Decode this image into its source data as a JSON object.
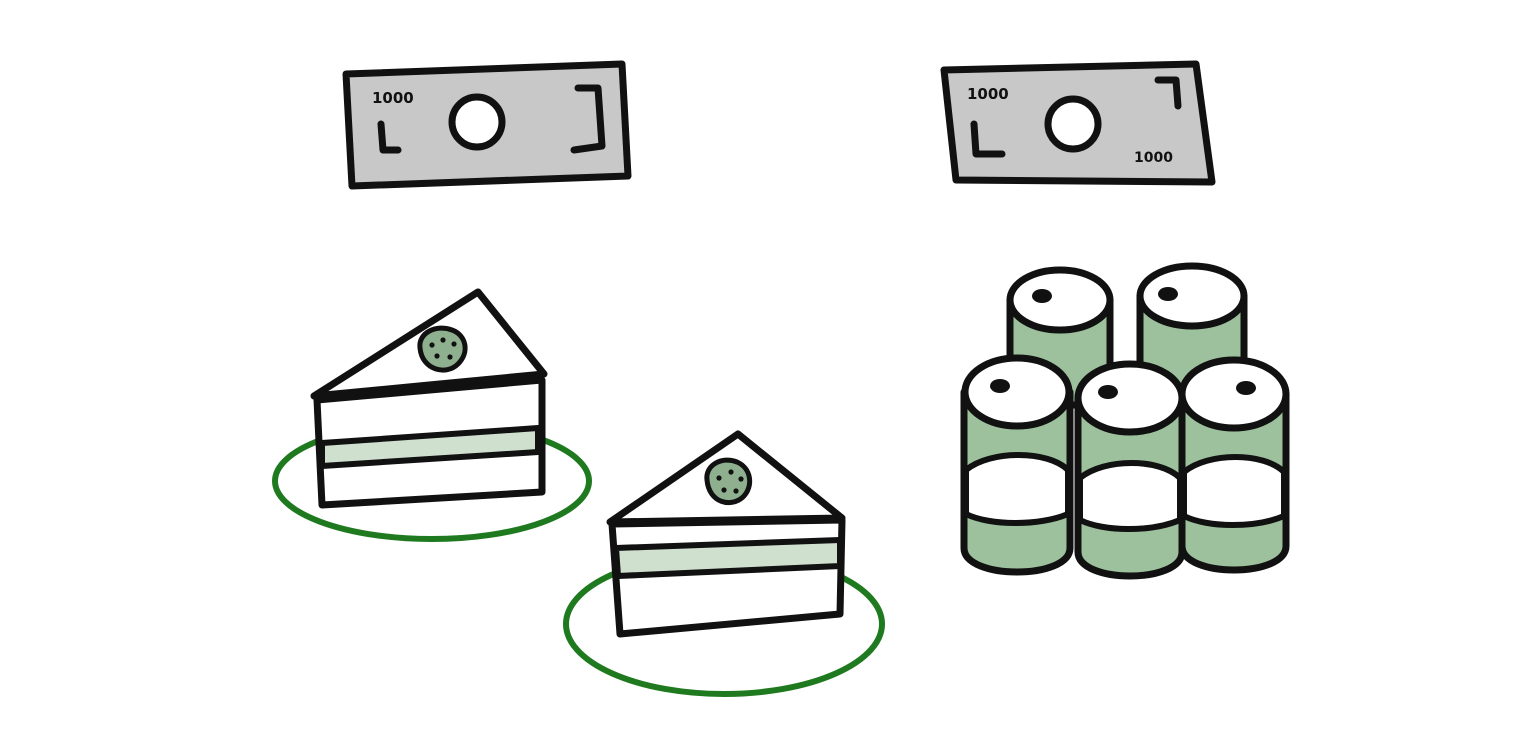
{
  "colors": {
    "ink": "#111111",
    "bill_fill": "#c8c8c8",
    "plate_ring": "#1f7a1f",
    "cream_fill": "#cfe0cf",
    "strawberry_fill": "#8fb08f",
    "can_fill": "#9dc19d",
    "background": "#ffffff"
  },
  "bills": [
    {
      "denomination_top_left": "1000"
    },
    {
      "denomination_top_left": "1000",
      "denomination_bottom_right": "1000"
    }
  ],
  "items": {
    "cake_slices": 2,
    "cans": 5
  }
}
